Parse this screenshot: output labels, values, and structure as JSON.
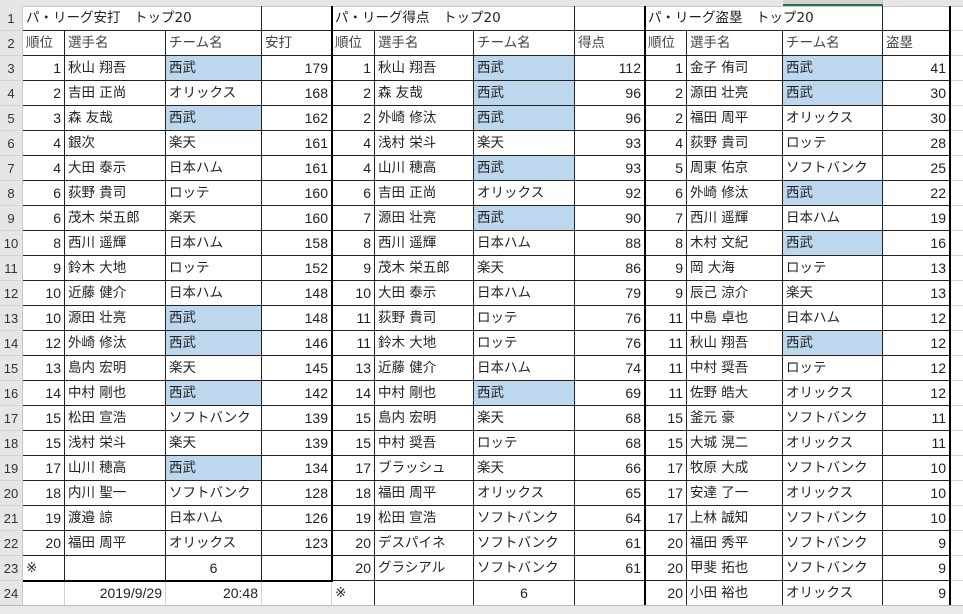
{
  "column_headers_strip": "",
  "row_numbers": [
    "1",
    "2",
    "3",
    "4",
    "5",
    "6",
    "7",
    "8",
    "9",
    "10",
    "11",
    "12",
    "13",
    "14",
    "15",
    "16",
    "17",
    "18",
    "19",
    "20",
    "21",
    "22",
    "23",
    "24"
  ],
  "colors": {
    "seibu_highlight": "#bdd7ee",
    "border": "#222222",
    "row_header_bg": "#e6e6e6",
    "selected_col_accent": "#217346"
  },
  "tables": [
    {
      "title": "パ・リーグ安打　トップ20",
      "headers": [
        "順位",
        "選手名",
        "チーム名",
        "安打"
      ],
      "rows": [
        {
          "rank": "1",
          "name": "秋山 翔吾",
          "team": "西武",
          "value": "179",
          "seibu": true
        },
        {
          "rank": "2",
          "name": "吉田 正尚",
          "team": "オリックス",
          "value": "168",
          "seibu": false
        },
        {
          "rank": "3",
          "name": "森 友哉",
          "team": "西武",
          "value": "162",
          "seibu": true
        },
        {
          "rank": "4",
          "name": "銀次",
          "team": "楽天",
          "value": "161",
          "seibu": false
        },
        {
          "rank": "4",
          "name": "大田 泰示",
          "team": "日本ハム",
          "value": "161",
          "seibu": false
        },
        {
          "rank": "6",
          "name": "荻野 貴司",
          "team": "ロッテ",
          "value": "160",
          "seibu": false
        },
        {
          "rank": "6",
          "name": "茂木 栄五郎",
          "team": "楽天",
          "value": "160",
          "seibu": false
        },
        {
          "rank": "8",
          "name": "西川 遥輝",
          "team": "日本ハム",
          "value": "158",
          "seibu": false
        },
        {
          "rank": "9",
          "name": "鈴木 大地",
          "team": "ロッテ",
          "value": "152",
          "seibu": false
        },
        {
          "rank": "10",
          "name": "近藤 健介",
          "team": "日本ハム",
          "value": "148",
          "seibu": false
        },
        {
          "rank": "10",
          "name": "源田 壮亮",
          "team": "西武",
          "value": "148",
          "seibu": true
        },
        {
          "rank": "12",
          "name": "外崎 修汰",
          "team": "西武",
          "value": "146",
          "seibu": true
        },
        {
          "rank": "13",
          "name": "島内 宏明",
          "team": "楽天",
          "value": "145",
          "seibu": false
        },
        {
          "rank": "14",
          "name": "中村 剛也",
          "team": "西武",
          "value": "142",
          "seibu": true
        },
        {
          "rank": "15",
          "name": "松田 宣浩",
          "team": "ソフトバンク",
          "value": "139",
          "seibu": false
        },
        {
          "rank": "15",
          "name": "浅村 栄斗",
          "team": "楽天",
          "value": "139",
          "seibu": false
        },
        {
          "rank": "17",
          "name": "山川 穂高",
          "team": "西武",
          "value": "134",
          "seibu": true
        },
        {
          "rank": "18",
          "name": "内川 聖一",
          "team": "ソフトバンク",
          "value": "128",
          "seibu": false
        },
        {
          "rank": "19",
          "name": "渡邉 諒",
          "team": "日本ハム",
          "value": "126",
          "seibu": false
        },
        {
          "rank": "20",
          "name": "福田 周平",
          "team": "オリックス",
          "value": "123",
          "seibu": false
        }
      ],
      "note_mark": "※",
      "note_count": "6",
      "date": "2019/9/29",
      "time": "20:48"
    },
    {
      "title": "パ・リーグ得点　トップ20",
      "headers": [
        "順位",
        "選手名",
        "チーム名",
        "得点"
      ],
      "rows": [
        {
          "rank": "1",
          "name": "秋山 翔吾",
          "team": "西武",
          "value": "112",
          "seibu": true
        },
        {
          "rank": "2",
          "name": "森 友哉",
          "team": "西武",
          "value": "96",
          "seibu": true
        },
        {
          "rank": "2",
          "name": "外崎 修汰",
          "team": "西武",
          "value": "96",
          "seibu": true
        },
        {
          "rank": "4",
          "name": "浅村 栄斗",
          "team": "楽天",
          "value": "93",
          "seibu": false
        },
        {
          "rank": "4",
          "name": "山川 穂高",
          "team": "西武",
          "value": "93",
          "seibu": true
        },
        {
          "rank": "6",
          "name": "吉田 正尚",
          "team": "オリックス",
          "value": "92",
          "seibu": false
        },
        {
          "rank": "7",
          "name": "源田 壮亮",
          "team": "西武",
          "value": "90",
          "seibu": true
        },
        {
          "rank": "8",
          "name": "西川 遥輝",
          "team": "日本ハム",
          "value": "88",
          "seibu": false
        },
        {
          "rank": "9",
          "name": "茂木 栄五郎",
          "team": "楽天",
          "value": "86",
          "seibu": false
        },
        {
          "rank": "10",
          "name": "大田 泰示",
          "team": "日本ハム",
          "value": "79",
          "seibu": false
        },
        {
          "rank": "11",
          "name": "荻野 貴司",
          "team": "ロッテ",
          "value": "76",
          "seibu": false
        },
        {
          "rank": "11",
          "name": "鈴木 大地",
          "team": "ロッテ",
          "value": "76",
          "seibu": false
        },
        {
          "rank": "13",
          "name": "近藤 健介",
          "team": "日本ハム",
          "value": "74",
          "seibu": false
        },
        {
          "rank": "14",
          "name": "中村 剛也",
          "team": "西武",
          "value": "69",
          "seibu": true
        },
        {
          "rank": "15",
          "name": "島内 宏明",
          "team": "楽天",
          "value": "68",
          "seibu": false
        },
        {
          "rank": "15",
          "name": "中村 奨吾",
          "team": "ロッテ",
          "value": "68",
          "seibu": false
        },
        {
          "rank": "17",
          "name": "ブラッシュ",
          "team": "楽天",
          "value": "66",
          "seibu": false
        },
        {
          "rank": "18",
          "name": "福田 周平",
          "team": "オリックス",
          "value": "65",
          "seibu": false
        },
        {
          "rank": "19",
          "name": "松田 宣浩",
          "team": "ソフトバンク",
          "value": "64",
          "seibu": false
        },
        {
          "rank": "20",
          "name": "デスパイネ",
          "team": "ソフトバンク",
          "value": "61",
          "seibu": false
        },
        {
          "rank": "20",
          "name": "グラシアル",
          "team": "ソフトバンク",
          "value": "61",
          "seibu": false
        }
      ],
      "note_mark": "※",
      "note_count": "6"
    },
    {
      "title": "パ・リーグ盗塁　トップ20",
      "headers": [
        "順位",
        "選手名",
        "チーム名",
        "盗塁"
      ],
      "rows": [
        {
          "rank": "1",
          "name": "金子 侑司",
          "team": "西武",
          "value": "41",
          "seibu": true
        },
        {
          "rank": "2",
          "name": "源田 壮亮",
          "team": "西武",
          "value": "30",
          "seibu": true
        },
        {
          "rank": "2",
          "name": "福田 周平",
          "team": "オリックス",
          "value": "30",
          "seibu": false
        },
        {
          "rank": "4",
          "name": "荻野 貴司",
          "team": "ロッテ",
          "value": "28",
          "seibu": false
        },
        {
          "rank": "5",
          "name": "周東 佑京",
          "team": "ソフトバンク",
          "value": "25",
          "seibu": false
        },
        {
          "rank": "6",
          "name": "外崎 修汰",
          "team": "西武",
          "value": "22",
          "seibu": true
        },
        {
          "rank": "7",
          "name": "西川 遥輝",
          "team": "日本ハム",
          "value": "19",
          "seibu": false
        },
        {
          "rank": "8",
          "name": "木村 文紀",
          "team": "西武",
          "value": "16",
          "seibu": true
        },
        {
          "rank": "9",
          "name": "岡 大海",
          "team": "ロッテ",
          "value": "13",
          "seibu": false
        },
        {
          "rank": "9",
          "name": "辰己 涼介",
          "team": "楽天",
          "value": "13",
          "seibu": false
        },
        {
          "rank": "11",
          "name": "中島 卓也",
          "team": "日本ハム",
          "value": "12",
          "seibu": false
        },
        {
          "rank": "11",
          "name": "秋山 翔吾",
          "team": "西武",
          "value": "12",
          "seibu": true
        },
        {
          "rank": "11",
          "name": "中村 奨吾",
          "team": "ロッテ",
          "value": "12",
          "seibu": false
        },
        {
          "rank": "11",
          "name": "佐野 皓大",
          "team": "オリックス",
          "value": "12",
          "seibu": false
        },
        {
          "rank": "15",
          "name": "釜元 豪",
          "team": "ソフトバンク",
          "value": "11",
          "seibu": false
        },
        {
          "rank": "15",
          "name": "大城 滉二",
          "team": "オリックス",
          "value": "11",
          "seibu": false
        },
        {
          "rank": "17",
          "name": "牧原 大成",
          "team": "ソフトバンク",
          "value": "10",
          "seibu": false
        },
        {
          "rank": "17",
          "name": "安達 了一",
          "team": "オリックス",
          "value": "10",
          "seibu": false
        },
        {
          "rank": "17",
          "name": "上林 誠知",
          "team": "ソフトバンク",
          "value": "10",
          "seibu": false
        },
        {
          "rank": "20",
          "name": "福田 秀平",
          "team": "ソフトバンク",
          "value": "9",
          "seibu": false
        },
        {
          "rank": "20",
          "name": "甲斐 拓也",
          "team": "ソフトバンク",
          "value": "9",
          "seibu": false
        },
        {
          "rank": "20",
          "name": "小田 裕也",
          "team": "オリックス",
          "value": "9",
          "seibu": false
        }
      ]
    }
  ]
}
